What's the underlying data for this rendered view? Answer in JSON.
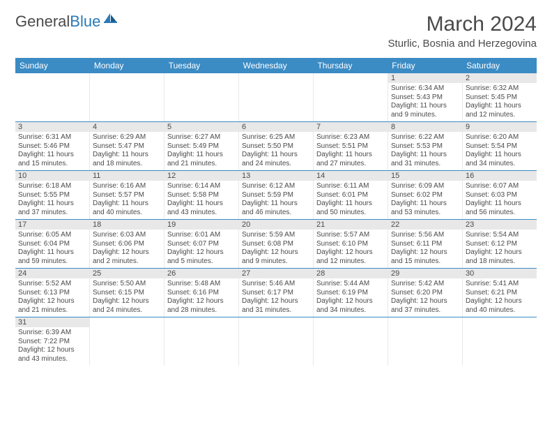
{
  "logo": {
    "text_dark": "General",
    "text_blue": "Blue"
  },
  "title": "March 2024",
  "location": "Sturlic, Bosnia and Herzegovina",
  "colors": {
    "header_bg": "#3b8bc4",
    "header_text": "#ffffff",
    "daynum_bg": "#e8e8e8",
    "text": "#4a4a4a",
    "row_border": "#3b8bc4",
    "logo_blue": "#2a7ab8"
  },
  "weekdays": [
    "Sunday",
    "Monday",
    "Tuesday",
    "Wednesday",
    "Thursday",
    "Friday",
    "Saturday"
  ],
  "weeks": [
    [
      null,
      null,
      null,
      null,
      null,
      {
        "n": "1",
        "sunrise": "Sunrise: 6:34 AM",
        "sunset": "Sunset: 5:43 PM",
        "daylight": "Daylight: 11 hours and 9 minutes."
      },
      {
        "n": "2",
        "sunrise": "Sunrise: 6:32 AM",
        "sunset": "Sunset: 5:45 PM",
        "daylight": "Daylight: 11 hours and 12 minutes."
      }
    ],
    [
      {
        "n": "3",
        "sunrise": "Sunrise: 6:31 AM",
        "sunset": "Sunset: 5:46 PM",
        "daylight": "Daylight: 11 hours and 15 minutes."
      },
      {
        "n": "4",
        "sunrise": "Sunrise: 6:29 AM",
        "sunset": "Sunset: 5:47 PM",
        "daylight": "Daylight: 11 hours and 18 minutes."
      },
      {
        "n": "5",
        "sunrise": "Sunrise: 6:27 AM",
        "sunset": "Sunset: 5:49 PM",
        "daylight": "Daylight: 11 hours and 21 minutes."
      },
      {
        "n": "6",
        "sunrise": "Sunrise: 6:25 AM",
        "sunset": "Sunset: 5:50 PM",
        "daylight": "Daylight: 11 hours and 24 minutes."
      },
      {
        "n": "7",
        "sunrise": "Sunrise: 6:23 AM",
        "sunset": "Sunset: 5:51 PM",
        "daylight": "Daylight: 11 hours and 27 minutes."
      },
      {
        "n": "8",
        "sunrise": "Sunrise: 6:22 AM",
        "sunset": "Sunset: 5:53 PM",
        "daylight": "Daylight: 11 hours and 31 minutes."
      },
      {
        "n": "9",
        "sunrise": "Sunrise: 6:20 AM",
        "sunset": "Sunset: 5:54 PM",
        "daylight": "Daylight: 11 hours and 34 minutes."
      }
    ],
    [
      {
        "n": "10",
        "sunrise": "Sunrise: 6:18 AM",
        "sunset": "Sunset: 5:55 PM",
        "daylight": "Daylight: 11 hours and 37 minutes."
      },
      {
        "n": "11",
        "sunrise": "Sunrise: 6:16 AM",
        "sunset": "Sunset: 5:57 PM",
        "daylight": "Daylight: 11 hours and 40 minutes."
      },
      {
        "n": "12",
        "sunrise": "Sunrise: 6:14 AM",
        "sunset": "Sunset: 5:58 PM",
        "daylight": "Daylight: 11 hours and 43 minutes."
      },
      {
        "n": "13",
        "sunrise": "Sunrise: 6:12 AM",
        "sunset": "Sunset: 5:59 PM",
        "daylight": "Daylight: 11 hours and 46 minutes."
      },
      {
        "n": "14",
        "sunrise": "Sunrise: 6:11 AM",
        "sunset": "Sunset: 6:01 PM",
        "daylight": "Daylight: 11 hours and 50 minutes."
      },
      {
        "n": "15",
        "sunrise": "Sunrise: 6:09 AM",
        "sunset": "Sunset: 6:02 PM",
        "daylight": "Daylight: 11 hours and 53 minutes."
      },
      {
        "n": "16",
        "sunrise": "Sunrise: 6:07 AM",
        "sunset": "Sunset: 6:03 PM",
        "daylight": "Daylight: 11 hours and 56 minutes."
      }
    ],
    [
      {
        "n": "17",
        "sunrise": "Sunrise: 6:05 AM",
        "sunset": "Sunset: 6:04 PM",
        "daylight": "Daylight: 11 hours and 59 minutes."
      },
      {
        "n": "18",
        "sunrise": "Sunrise: 6:03 AM",
        "sunset": "Sunset: 6:06 PM",
        "daylight": "Daylight: 12 hours and 2 minutes."
      },
      {
        "n": "19",
        "sunrise": "Sunrise: 6:01 AM",
        "sunset": "Sunset: 6:07 PM",
        "daylight": "Daylight: 12 hours and 5 minutes."
      },
      {
        "n": "20",
        "sunrise": "Sunrise: 5:59 AM",
        "sunset": "Sunset: 6:08 PM",
        "daylight": "Daylight: 12 hours and 9 minutes."
      },
      {
        "n": "21",
        "sunrise": "Sunrise: 5:57 AM",
        "sunset": "Sunset: 6:10 PM",
        "daylight": "Daylight: 12 hours and 12 minutes."
      },
      {
        "n": "22",
        "sunrise": "Sunrise: 5:56 AM",
        "sunset": "Sunset: 6:11 PM",
        "daylight": "Daylight: 12 hours and 15 minutes."
      },
      {
        "n": "23",
        "sunrise": "Sunrise: 5:54 AM",
        "sunset": "Sunset: 6:12 PM",
        "daylight": "Daylight: 12 hours and 18 minutes."
      }
    ],
    [
      {
        "n": "24",
        "sunrise": "Sunrise: 5:52 AM",
        "sunset": "Sunset: 6:13 PM",
        "daylight": "Daylight: 12 hours and 21 minutes."
      },
      {
        "n": "25",
        "sunrise": "Sunrise: 5:50 AM",
        "sunset": "Sunset: 6:15 PM",
        "daylight": "Daylight: 12 hours and 24 minutes."
      },
      {
        "n": "26",
        "sunrise": "Sunrise: 5:48 AM",
        "sunset": "Sunset: 6:16 PM",
        "daylight": "Daylight: 12 hours and 28 minutes."
      },
      {
        "n": "27",
        "sunrise": "Sunrise: 5:46 AM",
        "sunset": "Sunset: 6:17 PM",
        "daylight": "Daylight: 12 hours and 31 minutes."
      },
      {
        "n": "28",
        "sunrise": "Sunrise: 5:44 AM",
        "sunset": "Sunset: 6:19 PM",
        "daylight": "Daylight: 12 hours and 34 minutes."
      },
      {
        "n": "29",
        "sunrise": "Sunrise: 5:42 AM",
        "sunset": "Sunset: 6:20 PM",
        "daylight": "Daylight: 12 hours and 37 minutes."
      },
      {
        "n": "30",
        "sunrise": "Sunrise: 5:41 AM",
        "sunset": "Sunset: 6:21 PM",
        "daylight": "Daylight: 12 hours and 40 minutes."
      }
    ],
    [
      {
        "n": "31",
        "sunrise": "Sunrise: 6:39 AM",
        "sunset": "Sunset: 7:22 PM",
        "daylight": "Daylight: 12 hours and 43 minutes."
      },
      null,
      null,
      null,
      null,
      null,
      null
    ]
  ]
}
